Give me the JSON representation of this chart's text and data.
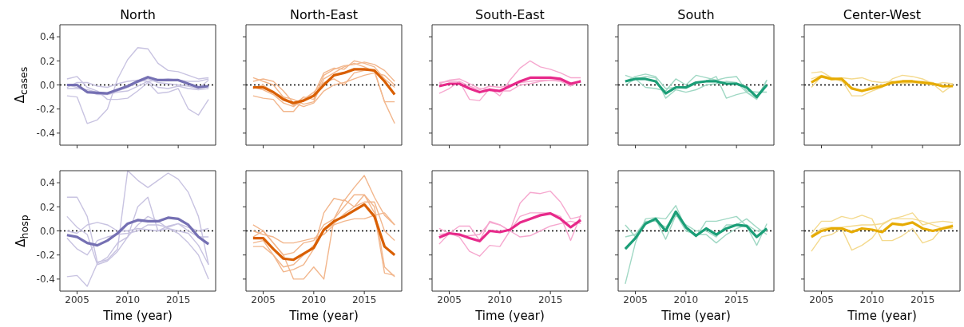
{
  "chart_data": [
    {
      "type": "line",
      "title": "North",
      "ylabel": "Δ$_{cases}$",
      "tick_labels": "y",
      "x": [
        2004,
        2005,
        2006,
        2007,
        2008,
        2009,
        2010,
        2011,
        2012,
        2013,
        2014,
        2015,
        2016,
        2017,
        2018
      ],
      "xlim": [
        2003.3,
        2018.7
      ],
      "xticks": [
        2005,
        2010,
        2015
      ],
      "ylim": [
        -0.5,
        0.5
      ],
      "yticks": [
        -0.4,
        -0.2,
        {
          "value": 0,
          "label": "0.0"
        },
        0.2,
        0.4
      ],
      "ref_lines": [
        {
          "axis": "y",
          "value": 0,
          "color": "#000000",
          "line_style": "dotted"
        }
      ],
      "series": [
        {
          "color": "#c8c3e1",
          "values": [
            -0.09,
            -0.1,
            -0.32,
            -0.29,
            -0.2,
            0.05,
            0.21,
            0.31,
            0.3,
            0.18,
            0.12,
            0.11,
            0.08,
            0.05,
            0.06
          ]
        },
        {
          "color": "#c8c3e1",
          "values": [
            0.05,
            0.07,
            -0.02,
            -0.05,
            -0.12,
            -0.12,
            -0.11,
            -0.05,
            0.02,
            -0.07,
            -0.06,
            -0.03,
            -0.2,
            -0.25,
            -0.12
          ]
        },
        {
          "color": "#c8c3e1",
          "values": [
            -0.03,
            -0.03,
            -0.04,
            -0.06,
            -0.07,
            -0.05,
            -0.02,
            0.02,
            0.05,
            0.02,
            0.01,
            0.0,
            -0.01,
            -0.03,
            0.04
          ]
        },
        {
          "color": "#c8c3e1",
          "values": [
            -0.02,
            0.02,
            0.02,
            -0.01,
            -0.02,
            0.01,
            0.03,
            0.04,
            0.03,
            0.04,
            0.05,
            0.04,
            0.03,
            0.03,
            0.05
          ]
        },
        {
          "color": "#c8c3e1",
          "values": [
            0.0,
            -0.02,
            -0.05,
            -0.08,
            -0.08,
            -0.06,
            -0.05,
            -0.01,
            0.03,
            -0.02,
            -0.03,
            -0.01,
            -0.03,
            -0.04,
            -0.03
          ]
        },
        {
          "color": "#7570b3",
          "values": [
            0.0,
            0.0,
            -0.06,
            -0.065,
            -0.07,
            -0.04,
            -0.01,
            0.03,
            0.065,
            0.04,
            0.04,
            0.04,
            0.01,
            -0.02,
            -0.01
          ]
        }
      ]
    },
    {
      "type": "line",
      "title": "North-East",
      "tick_labels": false,
      "x": [
        2004,
        2005,
        2006,
        2007,
        2008,
        2009,
        2010,
        2011,
        2012,
        2013,
        2014,
        2015,
        2016,
        2017,
        2018
      ],
      "xlim": [
        2003.3,
        2018.7
      ],
      "xticks": [
        2005,
        2010,
        2015
      ],
      "ylim": [
        -0.5,
        0.5
      ],
      "yticks": [
        -0.4,
        -0.2,
        0.0,
        0.2,
        0.4
      ],
      "ref_lines": [
        {
          "axis": "y",
          "value": 0,
          "color": "#000000",
          "line_style": "dotted"
        }
      ],
      "series": [
        {
          "color": "#f2b68c",
          "values": [
            0.06,
            0.03,
            0.0,
            -0.1,
            -0.12,
            -0.16,
            -0.14,
            0.05,
            0.1,
            0.15,
            0.18,
            0.15,
            0.11,
            -0.14,
            -0.32
          ]
        },
        {
          "color": "#f2b68c",
          "values": [
            -0.09,
            -0.11,
            -0.12,
            -0.22,
            -0.22,
            -0.12,
            -0.08,
            0.1,
            0.14,
            0.13,
            0.2,
            0.18,
            0.15,
            0.05,
            -0.02
          ]
        },
        {
          "color": "#f2b68c",
          "values": [
            0.03,
            0.05,
            0.03,
            -0.05,
            -0.15,
            -0.18,
            -0.15,
            -0.05,
            0.0,
            0.02,
            0.05,
            0.08,
            0.1,
            0.08,
            0.0
          ]
        },
        {
          "color": "#f2b68c",
          "values": [
            -0.03,
            0.0,
            -0.06,
            -0.1,
            -0.17,
            -0.1,
            -0.12,
            0.08,
            0.13,
            0.16,
            0.17,
            0.19,
            0.17,
            0.12,
            0.03
          ]
        },
        {
          "color": "#f2b68c",
          "values": [
            -0.02,
            -0.04,
            -0.08,
            -0.15,
            -0.18,
            -0.12,
            -0.06,
            0.02,
            0.05,
            0.0,
            0.1,
            0.12,
            0.12,
            -0.14,
            -0.14
          ]
        },
        {
          "color": "#d95f02",
          "values": [
            -0.02,
            -0.02,
            -0.06,
            -0.12,
            -0.15,
            -0.13,
            -0.09,
            0.0,
            0.08,
            0.1,
            0.13,
            0.13,
            0.12,
            0.03,
            -0.08
          ]
        }
      ]
    },
    {
      "type": "line",
      "title": "South-East",
      "tick_labels": false,
      "x": [
        2004,
        2005,
        2006,
        2007,
        2008,
        2009,
        2010,
        2011,
        2012,
        2013,
        2014,
        2015,
        2016,
        2017,
        2018
      ],
      "xlim": [
        2003.3,
        2018.7
      ],
      "xticks": [
        2005,
        2010,
        2015
      ],
      "ylim": [
        -0.5,
        0.5
      ],
      "yticks": [
        -0.4,
        -0.2,
        0.0,
        0.2,
        0.4
      ],
      "ref_lines": [
        {
          "axis": "y",
          "value": 0,
          "color": "#000000",
          "line_style": "dotted"
        }
      ],
      "series": [
        {
          "color": "#f6a8cf",
          "values": [
            -0.07,
            -0.03,
            0.03,
            -0.12,
            -0.13,
            -0.03,
            -0.09,
            0.04,
            0.14,
            0.2,
            0.15,
            0.13,
            0.1,
            0.06,
            0.06
          ]
        },
        {
          "color": "#f6a8cf",
          "values": [
            0.01,
            0.04,
            0.05,
            0.01,
            -0.03,
            -0.04,
            -0.05,
            -0.05,
            0.0,
            0.01,
            0.03,
            0.04,
            0.03,
            -0.01,
            0.04
          ]
        },
        {
          "color": "#f6a8cf",
          "values": [
            0.02,
            0.03,
            0.03,
            -0.01,
            -0.04,
            -0.01,
            -0.02,
            0.0,
            0.02,
            0.03,
            0.04,
            0.04,
            0.04,
            0.0,
            0.03
          ]
        },
        {
          "color": "#e7298a",
          "values": [
            -0.01,
            0.01,
            0.01,
            -0.03,
            -0.06,
            -0.04,
            -0.05,
            -0.01,
            0.03,
            0.06,
            0.06,
            0.06,
            0.05,
            0.01,
            0.03
          ]
        }
      ]
    },
    {
      "type": "line",
      "title": "South",
      "tick_labels": false,
      "x": [
        2004,
        2005,
        2006,
        2007,
        2008,
        2009,
        2010,
        2011,
        2012,
        2013,
        2014,
        2015,
        2016,
        2017,
        2018
      ],
      "xlim": [
        2003.3,
        2018.7
      ],
      "xticks": [
        2005,
        2010,
        2015
      ],
      "ylim": [
        -0.5,
        0.5
      ],
      "yticks": [
        -0.4,
        -0.2,
        0.0,
        0.2,
        0.4
      ],
      "ref_lines": [
        {
          "axis": "y",
          "value": 0,
          "color": "#000000",
          "line_style": "dotted"
        }
      ],
      "series": [
        {
          "color": "#a0d8c4",
          "values": [
            0.08,
            0.05,
            0.07,
            0.06,
            -0.11,
            -0.04,
            -0.06,
            -0.04,
            0.0,
            0.01,
            0.03,
            0.02,
            -0.06,
            -0.12,
            0.04
          ]
        },
        {
          "color": "#a0d8c4",
          "values": [
            0.0,
            0.05,
            -0.02,
            -0.03,
            -0.05,
            0.05,
            0.0,
            0.08,
            0.06,
            0.04,
            0.06,
            0.07,
            -0.05,
            -0.06,
            -0.06
          ]
        },
        {
          "color": "#a0d8c4",
          "values": [
            0.03,
            0.07,
            0.09,
            0.07,
            -0.03,
            -0.02,
            -0.03,
            0.01,
            0.03,
            0.07,
            -0.11,
            -0.08,
            -0.06,
            -0.11,
            0.04
          ]
        },
        {
          "color": "#1b9e77",
          "values": [
            0.03,
            0.05,
            0.05,
            0.03,
            -0.07,
            -0.02,
            -0.02,
            0.02,
            0.03,
            0.03,
            0.01,
            0.01,
            -0.02,
            -0.1,
            0.0
          ]
        }
      ]
    },
    {
      "type": "line",
      "title": "Center-West",
      "tick_labels": false,
      "x": [
        2004,
        2005,
        2006,
        2007,
        2008,
        2009,
        2010,
        2011,
        2012,
        2013,
        2014,
        2015,
        2016,
        2017,
        2018
      ],
      "xlim": [
        2003.3,
        2018.7
      ],
      "xticks": [
        2005,
        2010,
        2015
      ],
      "ylim": [
        -0.5,
        0.5
      ],
      "yticks": [
        -0.4,
        -0.2,
        0.0,
        0.2,
        0.4
      ],
      "ref_lines": [
        {
          "axis": "y",
          "value": 0,
          "color": "#000000",
          "line_style": "dotted"
        }
      ],
      "series": [
        {
          "color": "#f4da8e",
          "values": [
            0.1,
            0.11,
            0.06,
            0.04,
            -0.09,
            -0.09,
            -0.05,
            -0.02,
            0.05,
            0.08,
            0.07,
            0.05,
            0.01,
            -0.06,
            0.0
          ]
        },
        {
          "color": "#f4da8e",
          "values": [
            -0.02,
            0.07,
            0.04,
            0.06,
            0.05,
            0.06,
            0.03,
            0.02,
            0.03,
            0.01,
            0.02,
            0.01,
            0.0,
            0.02,
            0.01
          ]
        },
        {
          "color": "#f4da8e",
          "values": [
            0.05,
            0.08,
            0.06,
            0.03,
            -0.02,
            -0.05,
            -0.01,
            0.0,
            0.01,
            0.02,
            0.02,
            0.03,
            0.02,
            -0.02,
            0.0
          ]
        },
        {
          "color": "#e6ab02",
          "values": [
            0.02,
            0.07,
            0.05,
            0.05,
            -0.03,
            -0.05,
            -0.03,
            -0.01,
            0.02,
            0.03,
            0.03,
            0.02,
            0.01,
            -0.01,
            -0.01
          ]
        }
      ]
    },
    {
      "type": "line",
      "xlabel": "Time (year)",
      "ylabel": "Δ$_{hosp}$",
      "x": [
        2004,
        2005,
        2006,
        2007,
        2008,
        2009,
        2010,
        2011,
        2012,
        2013,
        2014,
        2015,
        2016,
        2017,
        2018
      ],
      "xlim": [
        2003.3,
        2018.7
      ],
      "xticks": [
        2005,
        2010,
        2015
      ],
      "ylim": [
        -0.5,
        0.5
      ],
      "yticks": [
        -0.4,
        -0.2,
        {
          "value": 0,
          "label": "0.0"
        },
        0.2,
        0.4
      ],
      "ref_lines": [
        {
          "axis": "y",
          "value": 0,
          "color": "#000000",
          "line_style": "dotted"
        }
      ],
      "series": [
        {
          "color": "#c8c3e1",
          "values": [
            0.28,
            0.28,
            0.12,
            -0.26,
            -0.24,
            -0.15,
            0.5,
            0.42,
            0.36,
            0.42,
            0.48,
            0.43,
            0.32,
            0.12,
            -0.28
          ]
        },
        {
          "color": "#c8c3e1",
          "values": [
            0.12,
            0.03,
            -0.03,
            -0.28,
            -0.25,
            -0.17,
            -0.05,
            0.2,
            0.28,
            0.0,
            0.02,
            0.0,
            -0.02,
            -0.12,
            -0.28
          ]
        },
        {
          "color": "#c8c3e1",
          "values": [
            -0.38,
            -0.37,
            -0.46,
            -0.27,
            -0.22,
            -0.1,
            -0.05,
            0.05,
            0.12,
            0.08,
            0.02,
            -0.02,
            -0.1,
            -0.2,
            -0.4
          ]
        },
        {
          "color": "#c8c3e1",
          "values": [
            -0.06,
            -0.15,
            -0.2,
            -0.08,
            -0.05,
            -0.03,
            -0.02,
            0.0,
            0.05,
            0.05,
            0.03,
            0.06,
            0.0,
            -0.05,
            -0.05
          ]
        },
        {
          "color": "#c8c3e1",
          "values": [
            0.0,
            -0.02,
            0.05,
            0.07,
            0.05,
            0.0,
            0.0,
            0.02,
            0.01,
            0.0,
            0.04,
            0.06,
            0.03,
            0.0,
            0.02
          ]
        },
        {
          "color": "#7570b3",
          "values": [
            -0.035,
            -0.05,
            -0.1,
            -0.12,
            -0.08,
            -0.02,
            0.06,
            0.09,
            0.08,
            0.08,
            0.11,
            0.1,
            0.05,
            -0.05,
            -0.11
          ]
        }
      ]
    },
    {
      "type": "line",
      "xlabel": "Time (year)",
      "tick_labels": "x",
      "x": [
        2004,
        2005,
        2006,
        2007,
        2008,
        2009,
        2010,
        2011,
        2012,
        2013,
        2014,
        2015,
        2016,
        2017,
        2018
      ],
      "xlim": [
        2003.3,
        2018.7
      ],
      "xticks": [
        2005,
        2010,
        2015
      ],
      "ylim": [
        -0.5,
        0.5
      ],
      "yticks": [
        -0.4,
        -0.2,
        0.0,
        0.2,
        0.4
      ],
      "ref_lines": [
        {
          "axis": "y",
          "value": 0,
          "color": "#000000",
          "line_style": "dotted"
        }
      ],
      "series": [
        {
          "color": "#f2b68c",
          "values": [
            0.05,
            0.0,
            -0.1,
            -0.2,
            -0.4,
            -0.4,
            -0.3,
            -0.4,
            0.1,
            0.26,
            0.2,
            0.3,
            0.15,
            -0.35,
            -0.37
          ]
        },
        {
          "color": "#f2b68c",
          "values": [
            -0.13,
            -0.13,
            -0.2,
            -0.34,
            -0.32,
            -0.28,
            -0.15,
            0.15,
            0.27,
            0.25,
            0.36,
            0.46,
            0.28,
            0.13,
            0.05
          ]
        },
        {
          "color": "#f2b68c",
          "values": [
            -0.05,
            0.0,
            -0.1,
            -0.2,
            -0.18,
            -0.1,
            -0.08,
            0.05,
            0.1,
            0.2,
            0.3,
            0.3,
            0.2,
            -0.3,
            -0.38
          ]
        },
        {
          "color": "#f2b68c",
          "values": [
            0.0,
            -0.03,
            -0.05,
            -0.1,
            -0.1,
            -0.08,
            -0.06,
            -0.03,
            0.05,
            0.08,
            0.1,
            0.1,
            0.13,
            0.15,
            0.05
          ]
        },
        {
          "color": "#f2b68c",
          "values": [
            -0.1,
            -0.08,
            -0.2,
            -0.3,
            -0.28,
            -0.2,
            -0.12,
            0.0,
            0.06,
            0.14,
            0.2,
            0.24,
            0.24,
            0.0,
            -0.08
          ]
        },
        {
          "color": "#d95f02",
          "values": [
            -0.06,
            -0.06,
            -0.15,
            -0.23,
            -0.24,
            -0.19,
            -0.14,
            0.01,
            0.08,
            0.12,
            0.17,
            0.22,
            0.12,
            -0.13,
            -0.2
          ]
        }
      ]
    },
    {
      "type": "line",
      "xlabel": "Time (year)",
      "tick_labels": "x",
      "x": [
        2004,
        2005,
        2006,
        2007,
        2008,
        2009,
        2010,
        2011,
        2012,
        2013,
        2014,
        2015,
        2016,
        2017,
        2018
      ],
      "xlim": [
        2003.3,
        2018.7
      ],
      "xticks": [
        2005,
        2010,
        2015
      ],
      "ylim": [
        -0.5,
        0.5
      ],
      "yticks": [
        -0.4,
        -0.2,
        0.0,
        0.2,
        0.4
      ],
      "ref_lines": [
        {
          "axis": "y",
          "value": 0,
          "color": "#000000",
          "line_style": "dotted"
        }
      ],
      "series": [
        {
          "color": "#f6a8cf",
          "values": [
            -0.11,
            -0.02,
            0.04,
            0.04,
            -0.08,
            0.08,
            0.05,
            0.0,
            0.23,
            0.32,
            0.31,
            0.33,
            0.24,
            0.1,
            0.12
          ]
        },
        {
          "color": "#f6a8cf",
          "values": [
            0.02,
            -0.02,
            -0.05,
            -0.17,
            -0.21,
            -0.12,
            -0.13,
            0.0,
            0.12,
            0.15,
            0.15,
            0.15,
            0.12,
            -0.08,
            0.13
          ]
        },
        {
          "color": "#f6a8cf",
          "values": [
            -0.03,
            -0.02,
            -0.04,
            -0.04,
            -0.03,
            0.07,
            0.05,
            0.0,
            -0.05,
            -0.04,
            0.0,
            0.04,
            0.06,
            0.08,
            0.06
          ]
        },
        {
          "color": "#e7298a",
          "values": [
            -0.055,
            -0.02,
            -0.03,
            -0.06,
            -0.085,
            0.0,
            -0.01,
            0.01,
            0.07,
            0.1,
            0.13,
            0.145,
            0.1,
            0.03,
            0.09
          ]
        }
      ]
    },
    {
      "type": "line",
      "xlabel": "Time (year)",
      "tick_labels": "x",
      "x": [
        2004,
        2005,
        2006,
        2007,
        2008,
        2009,
        2010,
        2011,
        2012,
        2013,
        2014,
        2015,
        2016,
        2017,
        2018
      ],
      "xlim": [
        2003.3,
        2018.7
      ],
      "xticks": [
        2005,
        2010,
        2015
      ],
      "ylim": [
        -0.5,
        0.5
      ],
      "yticks": [
        -0.4,
        -0.2,
        0.0,
        0.2,
        0.4
      ],
      "ref_lines": [
        {
          "axis": "y",
          "value": 0,
          "color": "#000000",
          "line_style": "dotted"
        }
      ],
      "series": [
        {
          "color": "#a0d8c4",
          "values": [
            -0.44,
            -0.1,
            0.1,
            0.11,
            0.1,
            0.21,
            0.02,
            -0.05,
            0.08,
            0.08,
            0.1,
            0.12,
            0.04,
            -0.12,
            0.06
          ]
        },
        {
          "color": "#a0d8c4",
          "values": [
            0.05,
            -0.05,
            0.07,
            0.1,
            -0.07,
            0.13,
            0.05,
            0.0,
            0.0,
            -0.05,
            0.05,
            0.05,
            0.1,
            0.03,
            -0.03
          ]
        },
        {
          "color": "#a0d8c4",
          "values": [
            -0.05,
            -0.03,
            0.08,
            0.08,
            0.03,
            0.14,
            0.0,
            -0.03,
            -0.03,
            -0.1,
            -0.03,
            0.02,
            0.05,
            0.0,
            0.0
          ]
        },
        {
          "color": "#1b9e77",
          "values": [
            -0.15,
            -0.06,
            0.06,
            0.1,
            0.0,
            0.16,
            0.03,
            -0.04,
            0.02,
            -0.03,
            0.02,
            0.05,
            0.04,
            -0.05,
            0.02
          ]
        }
      ]
    },
    {
      "type": "line",
      "xlabel": "Time (year)",
      "tick_labels": "x",
      "x": [
        2004,
        2005,
        2006,
        2007,
        2008,
        2009,
        2010,
        2011,
        2012,
        2013,
        2014,
        2015,
        2016,
        2017,
        2018
      ],
      "xlim": [
        2003.3,
        2018.7
      ],
      "xticks": [
        2005,
        2010,
        2015
      ],
      "ylim": [
        -0.5,
        0.5
      ],
      "yticks": [
        -0.4,
        -0.2,
        0.0,
        0.2,
        0.4
      ],
      "ref_lines": [
        {
          "axis": "y",
          "value": 0,
          "color": "#000000",
          "line_style": "dotted"
        }
      ],
      "series": [
        {
          "color": "#f4da8e",
          "values": [
            -0.17,
            -0.05,
            -0.03,
            0.02,
            -0.16,
            -0.12,
            -0.06,
            0.05,
            0.1,
            0.12,
            0.15,
            0.05,
            0.07,
            0.08,
            0.07
          ]
        },
        {
          "color": "#f4da8e",
          "values": [
            -0.02,
            0.08,
            0.08,
            0.12,
            0.1,
            0.13,
            0.1,
            -0.08,
            -0.08,
            -0.04,
            0.02,
            -0.1,
            -0.07,
            0.03,
            0.05
          ]
        },
        {
          "color": "#f4da8e",
          "values": [
            -0.04,
            0.02,
            0.03,
            0.03,
            0.04,
            0.05,
            0.05,
            0.06,
            0.1,
            0.1,
            0.1,
            0.08,
            0.05,
            0.02,
            0.02
          ]
        },
        {
          "color": "#e6ab02",
          "values": [
            -0.05,
            0.0,
            0.02,
            0.02,
            -0.01,
            0.02,
            0.01,
            -0.01,
            0.06,
            0.05,
            0.07,
            0.02,
            0.0,
            0.02,
            0.04
          ]
        }
      ]
    }
  ]
}
